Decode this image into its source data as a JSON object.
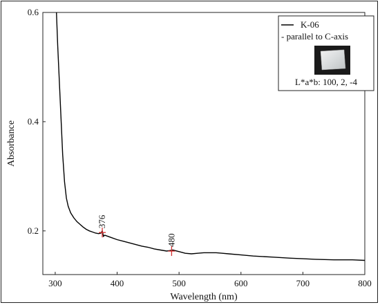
{
  "chart_data": {
    "type": "line",
    "xlabel": "Wavelength (nm)",
    "ylabel": "Absorbance",
    "xlim": [
      280,
      800
    ],
    "ylim": [
      0.12,
      0.6
    ],
    "xticks": [
      300,
      400,
      500,
      600,
      700,
      800
    ],
    "yticks": [
      0.2,
      0.4,
      0.6
    ],
    "xtick_labels": [
      "300",
      "400",
      "500",
      "600",
      "700",
      "800"
    ],
    "ytick_labels": [
      "0.2",
      "0.4",
      "0.6"
    ],
    "grid": false,
    "series": [
      {
        "name": "K-06",
        "color": "#000000",
        "x": [
          302,
          304,
          306,
          308,
          310,
          312,
          315,
          318,
          321,
          325,
          330,
          335,
          340,
          345,
          350,
          355,
          360,
          365,
          370,
          374,
          376,
          378,
          380,
          385,
          390,
          400,
          410,
          420,
          430,
          440,
          450,
          460,
          470,
          480,
          485,
          490,
          500,
          510,
          520,
          530,
          540,
          550,
          560,
          570,
          580,
          600,
          620,
          650,
          680,
          700,
          720,
          750,
          780,
          800
        ],
        "y": [
          0.6,
          0.54,
          0.49,
          0.44,
          0.39,
          0.34,
          0.29,
          0.26,
          0.245,
          0.233,
          0.224,
          0.217,
          0.212,
          0.207,
          0.203,
          0.2,
          0.198,
          0.196,
          0.195,
          0.196,
          0.2,
          0.19,
          0.192,
          0.19,
          0.188,
          0.184,
          0.181,
          0.178,
          0.175,
          0.172,
          0.17,
          0.167,
          0.165,
          0.163,
          0.164,
          0.165,
          0.162,
          0.159,
          0.158,
          0.159,
          0.16,
          0.16,
          0.16,
          0.159,
          0.158,
          0.156,
          0.154,
          0.152,
          0.15,
          0.149,
          0.148,
          0.147,
          0.147,
          0.146
        ]
      }
    ],
    "annotations": [
      {
        "label": "376",
        "x": 376,
        "y": 0.197,
        "color": "#d32f2f"
      },
      {
        "label": "480",
        "x": 488,
        "y": 0.163,
        "color": "#d32f2f"
      }
    ],
    "legend": {
      "placement": "top-right",
      "entries": [
        "K-06",
        "- parallel to C-axis"
      ],
      "color_note": "L*a*b: 100, 2, -4"
    }
  }
}
